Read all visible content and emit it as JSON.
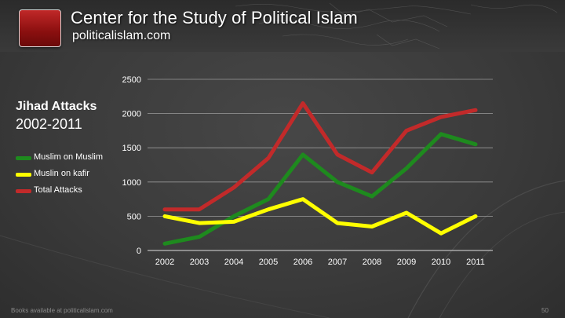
{
  "header": {
    "org_title": "Center for the Study of Political Islam",
    "org_site": "politicalislam.com"
  },
  "footer": {
    "text": "Books available at politicalislam.com",
    "page_number": "50"
  },
  "chart_data": {
    "type": "line",
    "title": "Jihad Attacks",
    "subtitle": "2002-2011",
    "categories": [
      "2002",
      "2003",
      "2004",
      "2005",
      "2006",
      "2007",
      "2008",
      "2009",
      "2010",
      "2011"
    ],
    "series": [
      {
        "name": "Muslim on Muslim",
        "color": "#1e8a1e",
        "values": [
          100,
          200,
          500,
          750,
          1400,
          1000,
          790,
          1200,
          1700,
          1550
        ]
      },
      {
        "name": "Muslin on kafir",
        "color": "#ffff00",
        "values": [
          500,
          400,
          420,
          600,
          750,
          400,
          350,
          550,
          250,
          500
        ]
      },
      {
        "name": "Total Attacks",
        "color": "#c22a2a",
        "values": [
          600,
          600,
          920,
          1350,
          2150,
          1400,
          1140,
          1750,
          1950,
          2050
        ]
      }
    ],
    "yticks": [
      0,
      500,
      1000,
      1500,
      2000,
      2500
    ],
    "ylim": [
      0,
      2500
    ],
    "xlabel": "",
    "ylabel": "",
    "grid": true,
    "legend_position": "left"
  }
}
